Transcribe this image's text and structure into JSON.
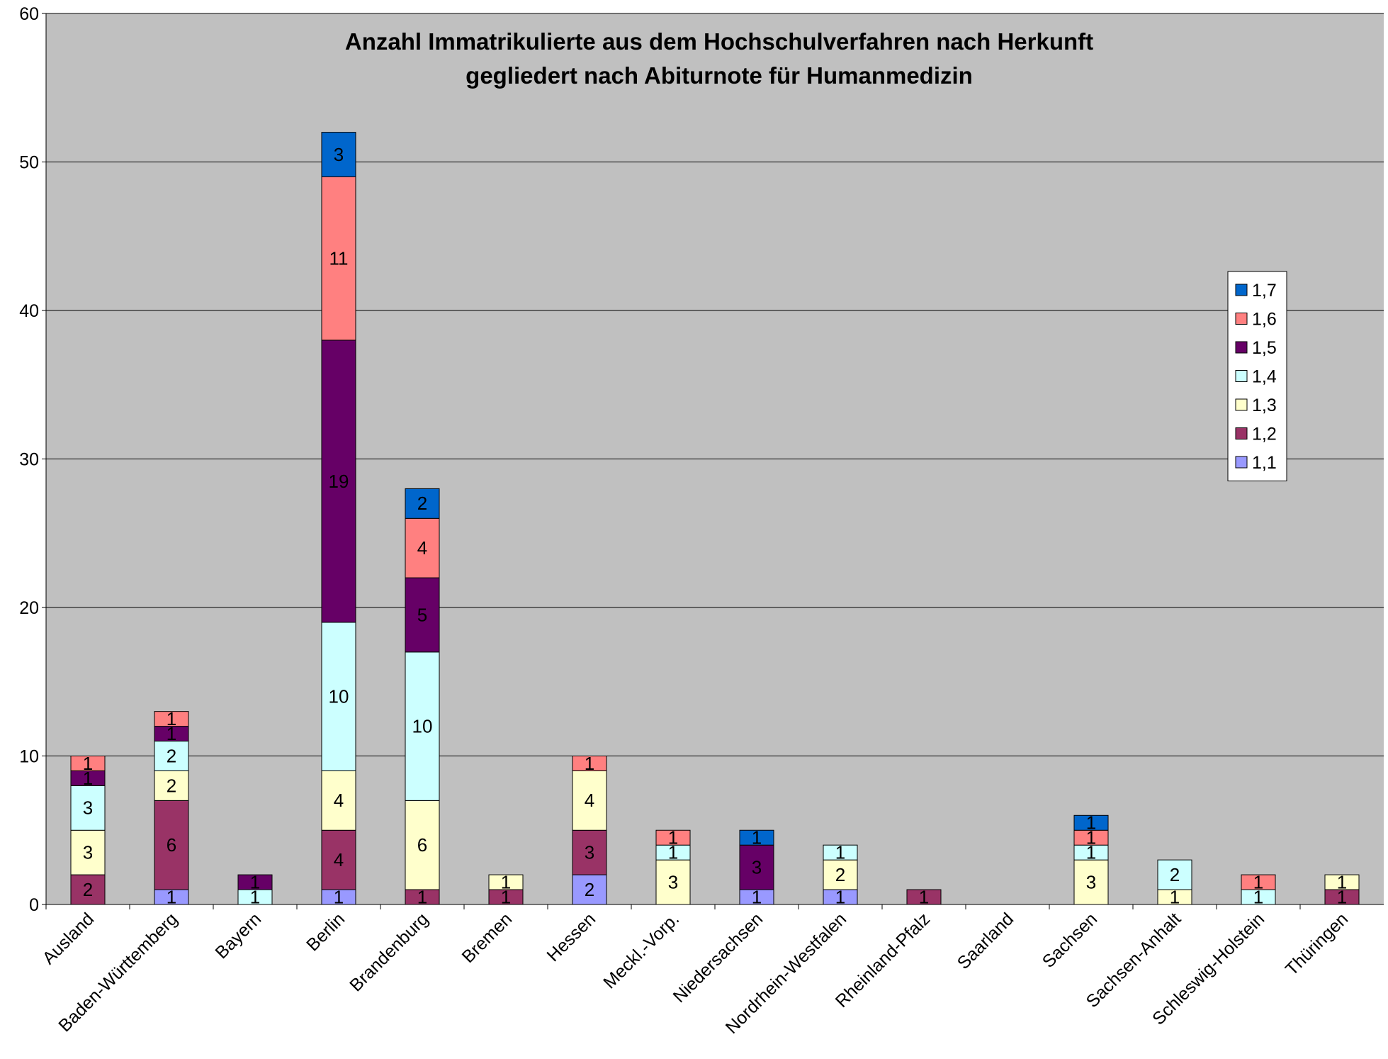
{
  "chart_data": {
    "type": "stacked_bar",
    "title": [
      "Anzahl Immatrikulierte aus dem Hochschulverfahren nach Herkunft",
      "gegliedert nach Abiturnote für Humanmedizin"
    ],
    "categories": [
      "Ausland",
      "Baden-Württemberg",
      "Bayern",
      "Berlin",
      "Brandenburg",
      "Bremen",
      "Hessen",
      "Meckl.-Vorp.",
      "Niedersachsen",
      "Nordrhein-Westfalen",
      "Rheinland-Pfalz",
      "Saarland",
      "Sachsen",
      "Sachsen-Anhalt",
      "Schleswig-Holstein",
      "Thüringen"
    ],
    "series": [
      {
        "name": "1,1",
        "color": "#9999ff",
        "values": [
          null,
          1,
          null,
          1,
          null,
          null,
          2,
          null,
          1,
          1,
          null,
          null,
          null,
          null,
          null,
          null
        ]
      },
      {
        "name": "1,2",
        "color": "#993366",
        "values": [
          2,
          6,
          null,
          4,
          1,
          1,
          3,
          null,
          null,
          null,
          1,
          null,
          null,
          null,
          null,
          1
        ]
      },
      {
        "name": "1,3",
        "color": "#ffffcc",
        "values": [
          3,
          2,
          null,
          4,
          6,
          1,
          4,
          3,
          null,
          2,
          null,
          null,
          3,
          1,
          null,
          1
        ]
      },
      {
        "name": "1,4",
        "color": "#ccffff",
        "values": [
          3,
          2,
          1,
          10,
          10,
          null,
          null,
          1,
          null,
          1,
          null,
          null,
          1,
          2,
          1,
          null
        ]
      },
      {
        "name": "1,5",
        "color": "#660066",
        "values": [
          1,
          1,
          1,
          19,
          5,
          null,
          null,
          null,
          3,
          null,
          null,
          null,
          null,
          null,
          null,
          null
        ]
      },
      {
        "name": "1,6",
        "color": "#ff8080",
        "values": [
          1,
          1,
          null,
          11,
          4,
          null,
          1,
          1,
          null,
          null,
          null,
          null,
          1,
          null,
          1,
          null
        ]
      },
      {
        "name": "1,7",
        "color": "#0066cc",
        "values": [
          null,
          null,
          null,
          3,
          2,
          null,
          null,
          null,
          1,
          null,
          null,
          null,
          1,
          null,
          null,
          null
        ]
      }
    ],
    "ylim": [
      0,
      60
    ],
    "yticks": [
      0,
      10,
      20,
      30,
      40,
      50,
      60
    ],
    "grid": true,
    "legend": "right",
    "plot_background": "#c0c0c0"
  }
}
